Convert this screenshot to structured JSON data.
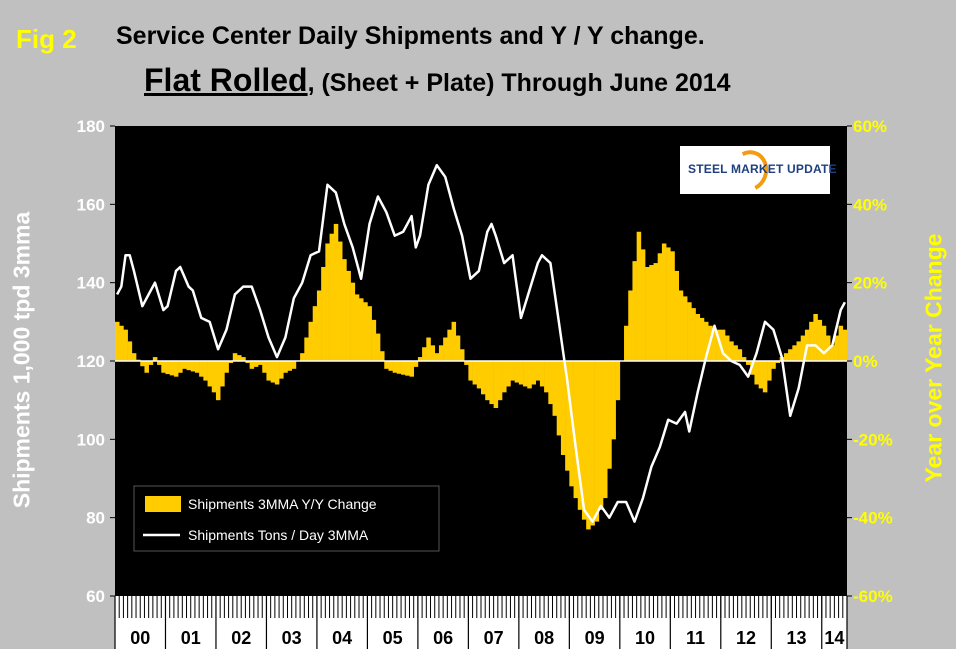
{
  "header": {
    "fig_label": "Fig 2",
    "title_line1": "Service Center Daily Shipments and Y / Y change.",
    "title_line2_emphasis": "Flat Rolled",
    "title_line2_rest": ", (Sheet + Plate) Through June 2014"
  },
  "logo": {
    "text": "STEEL MARKET UPDATE"
  },
  "colors": {
    "background": "#c0c0c0",
    "plot": "#000000",
    "bars": "#ffcc00",
    "line": "#ffffff",
    "right_axis": "#ffff00"
  },
  "chart_data": {
    "type": "bar",
    "xlabel": "",
    "ylabel": "Shipments 1,000 tpd 3mma",
    "ylabel_right": "Year over Year Change",
    "ylim": [
      60,
      180
    ],
    "ylim_right": [
      -60,
      60
    ],
    "yticks": [
      "60",
      "80",
      "100",
      "120",
      "140",
      "160",
      "180"
    ],
    "yticks_right": [
      "-60%",
      "-40%",
      "-20%",
      "0%",
      "20%",
      "40%",
      "60%"
    ],
    "categories": [
      "00",
      "01",
      "02",
      "03",
      "04",
      "05",
      "06",
      "07",
      "08",
      "09",
      "10",
      "11",
      "12",
      "13",
      "14"
    ],
    "months_total": 174,
    "grid": false,
    "legend_position": "bottom-left",
    "series": [
      {
        "name": "Shipments 3MMA Y/Y Change",
        "axis": "right",
        "kind": "bar",
        "anchors": [
          [
            0,
            10
          ],
          [
            2,
            8
          ],
          [
            4,
            2
          ],
          [
            7,
            -3
          ],
          [
            9,
            1
          ],
          [
            11,
            -3
          ],
          [
            14,
            -4
          ],
          [
            16,
            -2
          ],
          [
            19,
            -3
          ],
          [
            21,
            -5
          ],
          [
            23,
            -8
          ],
          [
            24,
            -10
          ],
          [
            26,
            -3
          ],
          [
            28,
            2
          ],
          [
            30,
            1
          ],
          [
            32,
            -2
          ],
          [
            34,
            -1
          ],
          [
            36,
            -5
          ],
          [
            38,
            -6
          ],
          [
            40,
            -3
          ],
          [
            42,
            -2
          ],
          [
            44,
            2
          ],
          [
            46,
            10
          ],
          [
            48,
            18
          ],
          [
            50,
            30
          ],
          [
            52,
            35
          ],
          [
            54,
            26
          ],
          [
            57,
            17
          ],
          [
            60,
            14
          ],
          [
            62,
            7
          ],
          [
            64,
            -2
          ],
          [
            66,
            -3
          ],
          [
            70,
            -4
          ],
          [
            72,
            1
          ],
          [
            74,
            6
          ],
          [
            76,
            2
          ],
          [
            78,
            6
          ],
          [
            80,
            10
          ],
          [
            82,
            3
          ],
          [
            84,
            -5
          ],
          [
            86,
            -7
          ],
          [
            88,
            -10
          ],
          [
            90,
            -12
          ],
          [
            92,
            -8
          ],
          [
            94,
            -5
          ],
          [
            96,
            -6
          ],
          [
            98,
            -7
          ],
          [
            100,
            -5
          ],
          [
            102,
            -8
          ],
          [
            104,
            -14
          ],
          [
            106,
            -24
          ],
          [
            108,
            -32
          ],
          [
            110,
            -38
          ],
          [
            112,
            -43
          ],
          [
            114,
            -41
          ],
          [
            116,
            -35
          ],
          [
            118,
            -20
          ],
          [
            120,
            0
          ],
          [
            122,
            18
          ],
          [
            124,
            33
          ],
          [
            126,
            24
          ],
          [
            128,
            25
          ],
          [
            130,
            30
          ],
          [
            132,
            28
          ],
          [
            134,
            18
          ],
          [
            136,
            15
          ],
          [
            138,
            12
          ],
          [
            140,
            10
          ],
          [
            142,
            8
          ],
          [
            144,
            8
          ],
          [
            146,
            5
          ],
          [
            148,
            3
          ],
          [
            150,
            -1
          ],
          [
            152,
            -6
          ],
          [
            154,
            -8
          ],
          [
            156,
            -2
          ],
          [
            158,
            1
          ],
          [
            160,
            3
          ],
          [
            162,
            5
          ],
          [
            164,
            8
          ],
          [
            166,
            12
          ],
          [
            168,
            9
          ],
          [
            170,
            4
          ],
          [
            172,
            9
          ],
          [
            173,
            8
          ]
        ]
      },
      {
        "name": "Shipments Tons / Day 3MMA",
        "axis": "left",
        "kind": "line",
        "anchors": [
          [
            0,
            137
          ],
          [
            1,
            139
          ],
          [
            2,
            147
          ],
          [
            3,
            147
          ],
          [
            4,
            143
          ],
          [
            6,
            134
          ],
          [
            8,
            138
          ],
          [
            9,
            140
          ],
          [
            11,
            133
          ],
          [
            12,
            134
          ],
          [
            14,
            143
          ],
          [
            15,
            144
          ],
          [
            17,
            139
          ],
          [
            18,
            138
          ],
          [
            20,
            131
          ],
          [
            22,
            130
          ],
          [
            24,
            123
          ],
          [
            26,
            128
          ],
          [
            28,
            137
          ],
          [
            30,
            139
          ],
          [
            32,
            139
          ],
          [
            34,
            133
          ],
          [
            36,
            126
          ],
          [
            38,
            121
          ],
          [
            40,
            126
          ],
          [
            42,
            136
          ],
          [
            44,
            140
          ],
          [
            46,
            147
          ],
          [
            48,
            148
          ],
          [
            50,
            165
          ],
          [
            52,
            163
          ],
          [
            54,
            155
          ],
          [
            56,
            149
          ],
          [
            58,
            141
          ],
          [
            60,
            155
          ],
          [
            62,
            162
          ],
          [
            64,
            158
          ],
          [
            66,
            152
          ],
          [
            68,
            153
          ],
          [
            70,
            157
          ],
          [
            71,
            149
          ],
          [
            72,
            152
          ],
          [
            74,
            165
          ],
          [
            76,
            170
          ],
          [
            78,
            167
          ],
          [
            80,
            159
          ],
          [
            82,
            152
          ],
          [
            84,
            141
          ],
          [
            86,
            143
          ],
          [
            88,
            153
          ],
          [
            89,
            155
          ],
          [
            90,
            152
          ],
          [
            92,
            145
          ],
          [
            94,
            147
          ],
          [
            96,
            131
          ],
          [
            98,
            138
          ],
          [
            100,
            145
          ],
          [
            101,
            147
          ],
          [
            103,
            145
          ],
          [
            105,
            130
          ],
          [
            107,
            115
          ],
          [
            109,
            98
          ],
          [
            111,
            82
          ],
          [
            113,
            79
          ],
          [
            115,
            83
          ],
          [
            117,
            80
          ],
          [
            119,
            84
          ],
          [
            121,
            84
          ],
          [
            123,
            79
          ],
          [
            125,
            85
          ],
          [
            127,
            93
          ],
          [
            129,
            98
          ],
          [
            131,
            105
          ],
          [
            133,
            104
          ],
          [
            135,
            107
          ],
          [
            136,
            102
          ],
          [
            138,
            112
          ],
          [
            140,
            121
          ],
          [
            142,
            129
          ],
          [
            144,
            122
          ],
          [
            146,
            120
          ],
          [
            148,
            119
          ],
          [
            150,
            116
          ],
          [
            152,
            122
          ],
          [
            154,
            130
          ],
          [
            156,
            128
          ],
          [
            158,
            121
          ],
          [
            160,
            106
          ],
          [
            162,
            113
          ],
          [
            164,
            124
          ],
          [
            166,
            124
          ],
          [
            168,
            122
          ],
          [
            170,
            124
          ],
          [
            172,
            133
          ],
          [
            173,
            135
          ]
        ]
      }
    ]
  }
}
